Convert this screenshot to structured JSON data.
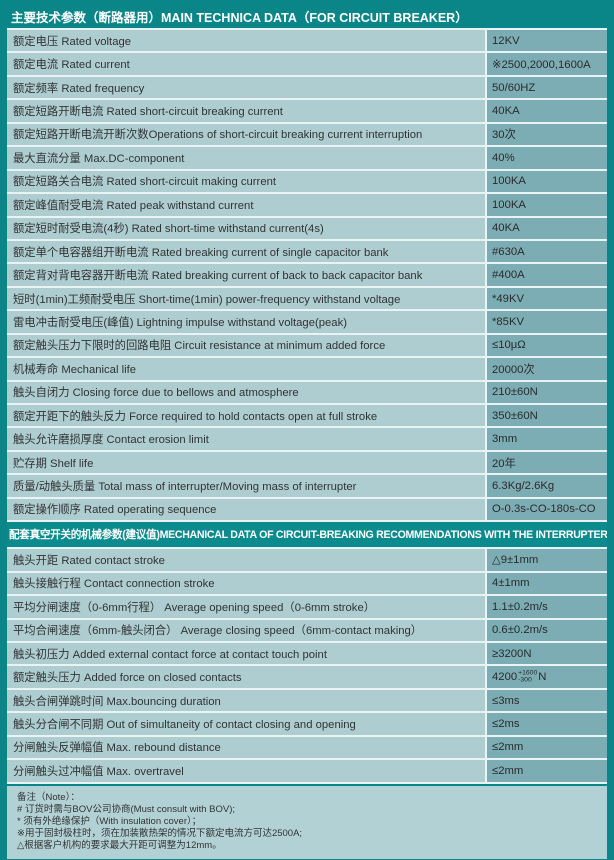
{
  "colors": {
    "page_teal": "#0b8688",
    "section_header_teal": "#0c8b8e",
    "label_cell_bg": "#adcdd1",
    "value_cell_bg": "#7cadb4",
    "separator": "#e9f3f3",
    "header_text": "#ffffff",
    "body_text": "#333333"
  },
  "section1": {
    "title": "主要技术参数（断路器用）MAIN TECHNICA DATA（FOR CIRCUIT BREAKER）",
    "rows": [
      {
        "label": "额定电压 Rated voltage",
        "value": "12KV"
      },
      {
        "label": "额定电流 Rated current",
        "value": "※2500,2000,1600A"
      },
      {
        "label": "额定频率 Rated frequency",
        "value": "50/60HZ"
      },
      {
        "label": "额定短路开断电流 Rated short-circuit breaking current",
        "value": "40KA"
      },
      {
        "label": "额定短路开断电流开断次数Operations of short-circuit breaking current interruption",
        "value": "30次"
      },
      {
        "label": "最大直流分量 Max.DC-component",
        "value": "40%"
      },
      {
        "label": "额定短路关合电流 Rated short-circuit making current",
        "value": "100KA"
      },
      {
        "label": "额定峰值耐受电流 Rated peak withstand current",
        "value": "100KA"
      },
      {
        "label": "额定短时耐受电流(4秒) Rated short-time withstand current(4s)",
        "value": "40KA"
      },
      {
        "label": "额定单个电容器组开断电流 Rated breaking current of single capacitor bank",
        "value": "#630A"
      },
      {
        "label": "额定背对背电容器开断电流 Rated breaking current of back to back capacitor bank",
        "value": "#400A"
      },
      {
        "label": "短时(1min)工频耐受电压 Short-time(1min) power-frequency withstand voltage",
        "value": "*49KV"
      },
      {
        "label": "雷电冲击耐受电压(峰值) Lightning impulse withstand voltage(peak)",
        "value": "*85KV"
      },
      {
        "label": "额定触头压力下限时的回路电阻 Circuit resistance at minimum added force",
        "value": "≤10μΩ"
      },
      {
        "label": "机械寿命 Mechanical life",
        "value": "20000次"
      },
      {
        "label": "触头自闭力 Closing force due to bellows and atmosphere",
        "value": "210±60N"
      },
      {
        "label": "额定开距下的触头反力 Force required to hold contacts open at full stroke",
        "value": "350±60N"
      },
      {
        "label": "触头允许磨损厚度 Contact erosion limit",
        "value": "3mm"
      },
      {
        "label": "贮存期 Shelf life",
        "value": "20年"
      },
      {
        "label": "质量/动触头质量 Total mass of interrupter/Moving mass of interrupter",
        "value": "6.3Kg/2.6Kg"
      },
      {
        "label": "额定操作顺序 Rated operating sequence",
        "value": "O-0.3s-CO-180s-CO"
      }
    ]
  },
  "section2": {
    "title": "配套真空开关的机械参数(建议值)MECHANICAL DATA OF CIRCUIT-BREAKING RECOMMENDATIONS WITH THE INTERRUPTERS",
    "rows": [
      {
        "label": "触头开距 Rated contact stroke",
        "value": "△9±1mm"
      },
      {
        "label": "触头接触行程 Contact connection stroke",
        "value": "4±1mm"
      },
      {
        "label": "平均分闸速度（0-6mm行程） Average opening speed（0-6mm stroke）",
        "value": "1.1±0.2m/s"
      },
      {
        "label": "平均合闸速度（6mm-触头闭合） Average closing speed（6mm-contact making）",
        "value": "0.6±0.2m/s"
      },
      {
        "label": "触头初压力 Added external contact force at contact touch point",
        "value": "≥3200N"
      },
      {
        "label": "额定触头压力 Added force on closed contacts",
        "value": "4200",
        "value_sup": "+1600",
        "value_sub": "-300",
        "value_suffix": "N"
      },
      {
        "label": "触头合闸弹跳时间 Max.bouncing duration",
        "value": "≤3ms"
      },
      {
        "label": "触头分合闸不同期 Out of simultaneity of contact closing and opening",
        "value": "≤2ms"
      },
      {
        "label": "分闸触头反弹幅值 Max. rebound distance",
        "value": "≤2mm"
      },
      {
        "label": "分闸触头过冲幅值 Max. overtravel",
        "value": "≤2mm"
      }
    ]
  },
  "notes": {
    "heading": "备注（Note）：",
    "lines": [
      "# 订货时需与BOV公司协商(Must consult with BOV);",
      "* 须有外绝缘保护（With insulation cover）；",
      "※用于固封极柱时，须在加装散热架的情况下额定电流方可达2500A;",
      "△根据客户机构的要求最大开距可调整为12mm。"
    ]
  }
}
